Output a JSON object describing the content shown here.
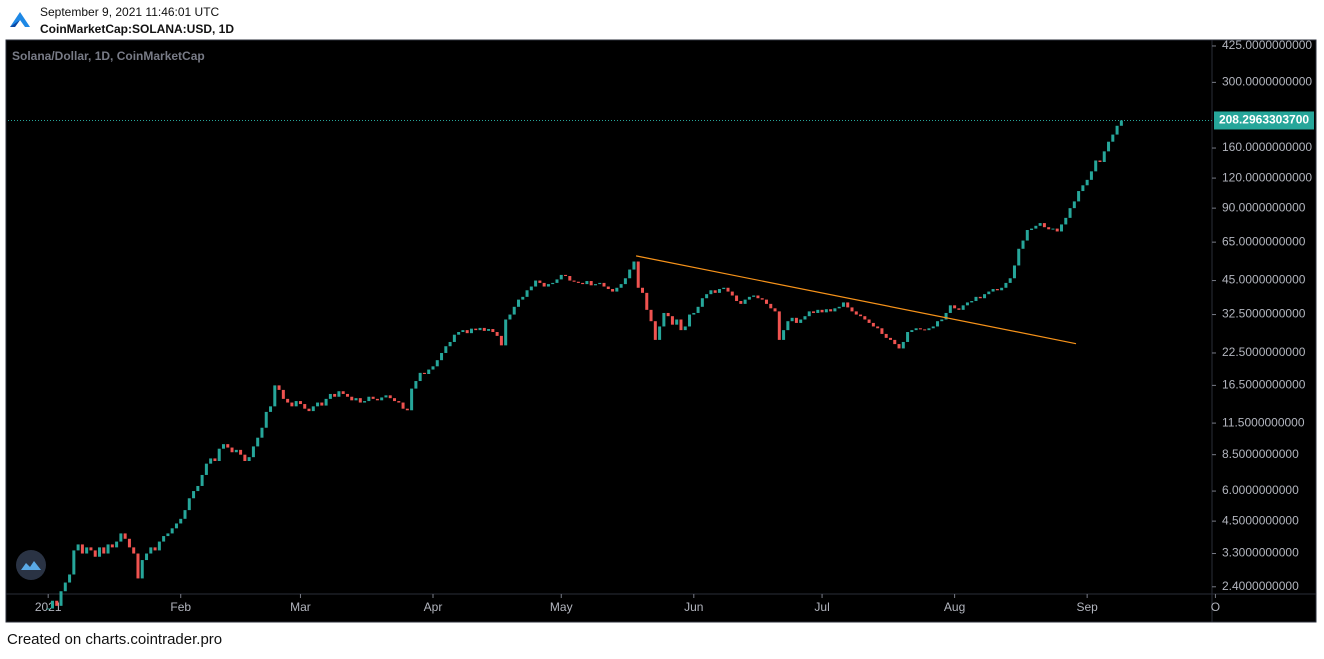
{
  "header": {
    "timestamp": "September 9, 2021 11:46:01 UTC",
    "symbol": "CoinMarketCap:SOLANA:USD, 1D"
  },
  "chart_data": {
    "type": "candlestick",
    "title": "Solana/Dollar, 1D, CoinMarketCap",
    "close": [
      1.95,
      2.1,
      2.0,
      2.3,
      2.5,
      2.7,
      3.4,
      3.6,
      3.3,
      3.5,
      3.4,
      3.2,
      3.5,
      3.3,
      3.6,
      3.5,
      3.7,
      4.0,
      3.8,
      3.5,
      3.3,
      2.6,
      3.1,
      3.3,
      3.5,
      3.4,
      3.7,
      3.9,
      4.0,
      4.2,
      4.4,
      4.6,
      5.0,
      5.6,
      6.0,
      6.3,
      7.0,
      7.8,
      8.2,
      8.0,
      9.0,
      9.4,
      9.1,
      8.7,
      8.9,
      8.5,
      8.0,
      8.3,
      9.2,
      10.0,
      11.0,
      12.8,
      13.5,
      16.5,
      15.8,
      14.5,
      14.0,
      13.5,
      14.2,
      13.8,
      13.2,
      12.9,
      13.5,
      14.0,
      13.6,
      14.5,
      15.2,
      14.8,
      15.6,
      15.2,
      14.8,
      14.3,
      14.6,
      14.0,
      14.2,
      14.8,
      14.5,
      14.3,
      14.7,
      15.0,
      14.6,
      14.2,
      14.0,
      13.2,
      13.0,
      16.0,
      17.2,
      18.6,
      18.4,
      19.2,
      19.8,
      21.0,
      22.5,
      24.0,
      25.0,
      26.8,
      27.5,
      28.0,
      27.2,
      28.4,
      28.0,
      28.6,
      27.8,
      28.3,
      27.5,
      26.5,
      24.2,
      31.0,
      32.5,
      35.0,
      37.5,
      38.5,
      41.0,
      42.5,
      45.0,
      44.0,
      42.5,
      43.5,
      44.0,
      45.5,
      47.5,
      47.0,
      45.0,
      44.5,
      44.0,
      43.5,
      44.8,
      43.0,
      43.5,
      44.0,
      42.5,
      41.5,
      40.5,
      42.0,
      43.5,
      46.0,
      50.0,
      54.0,
      42.0,
      40.0,
      34.0,
      30.5,
      25.5,
      29.0,
      33.0,
      32.0,
      29.5,
      31.0,
      28.0,
      29.0,
      32.5,
      33.0,
      35.0,
      38.0,
      39.5,
      41.0,
      40.0,
      41.5,
      42.0,
      40.5,
      39.0,
      37.0,
      36.0,
      37.5,
      38.5,
      39.0,
      38.0,
      37.5,
      36.0,
      34.5,
      33.5,
      25.5,
      28.0,
      30.5,
      31.5,
      30.0,
      31.0,
      32.0,
      33.5,
      33.0,
      34.0,
      33.2,
      34.2,
      33.5,
      34.5,
      35.0,
      36.5,
      34.8,
      33.5,
      32.5,
      32.0,
      31.0,
      30.0,
      29.0,
      28.5,
      27.0,
      26.0,
      25.5,
      24.5,
      23.5,
      25.0,
      27.5,
      28.0,
      28.5,
      28.2,
      28.0,
      28.5,
      29.0,
      30.5,
      31.0,
      33.0,
      35.5,
      34.5,
      34.0,
      35.5,
      36.5,
      37.0,
      38.5,
      38.0,
      39.5,
      40.5,
      41.5,
      41.0,
      42.0,
      44.0,
      46.0,
      52.0,
      61.0,
      66.0,
      73.0,
      74.0,
      76.0,
      78.0,
      75.0,
      73.5,
      74.0,
      72.0,
      77.0,
      82.0,
      90.0,
      96.0,
      106.0,
      112.0,
      118.0,
      128.0,
      142.0,
      140.0,
      155.0,
      170.0,
      182.0,
      198.0,
      208.29633037
    ],
    "last_value_label": "208.2963303700",
    "up_color": "#26a69a",
    "down_color": "#ef5350",
    "xlim": [
      -9.4,
      272.2
    ],
    "xticks": [
      {
        "value": 0,
        "label": "2021"
      },
      {
        "value": 31,
        "label": "Feb"
      },
      {
        "value": 59,
        "label": "Mar"
      },
      {
        "value": 90,
        "label": "Apr"
      },
      {
        "value": 120,
        "label": "May"
      },
      {
        "value": 151,
        "label": "Jun"
      },
      {
        "value": 181,
        "label": "Jul"
      },
      {
        "value": 212,
        "label": "Aug"
      },
      {
        "value": 243,
        "label": "Sep"
      },
      {
        "value": 273,
        "label": "O"
      }
    ],
    "ylim": [
      2.24,
      450
    ],
    "log_scale": true,
    "yticks": [
      {
        "value": 425,
        "label": "425.0000000000"
      },
      {
        "value": 300,
        "label": "300.0000000000"
      },
      {
        "value": 160,
        "label": "160.0000000000"
      },
      {
        "value": 120,
        "label": "120.0000000000"
      },
      {
        "value": 90,
        "label": "90.0000000000"
      },
      {
        "value": 65,
        "label": "65.0000000000"
      },
      {
        "value": 45,
        "label": "45.0000000000"
      },
      {
        "value": 32.5,
        "label": "32.5000000000"
      },
      {
        "value": 22.5,
        "label": "22.5000000000"
      },
      {
        "value": 16.5,
        "label": "16.5000000000"
      },
      {
        "value": 11.5,
        "label": "11.5000000000"
      },
      {
        "value": 8.5,
        "label": "8.5000000000"
      },
      {
        "value": 6,
        "label": "6.0000000000"
      },
      {
        "value": 4.5,
        "label": "4.5000000000"
      },
      {
        "value": 3.3,
        "label": "3.3000000000"
      },
      {
        "value": 2.4,
        "label": "2.4000000000"
      }
    ],
    "trendline": {
      "x": [
        137.5,
        240.4
      ],
      "y": [
        57,
        24.6
      ],
      "color": "#f7931a"
    }
  },
  "footer": "Created on charts.cointrader.pro"
}
